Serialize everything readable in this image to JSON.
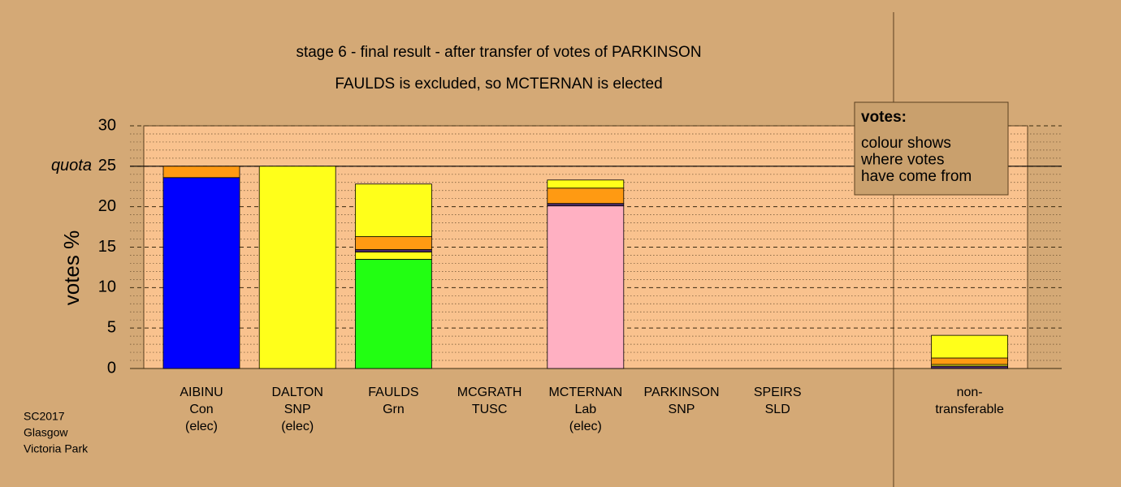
{
  "chart_data": {
    "type": "bar",
    "title": "stage 6 - final result - after transfer of votes of PARKINSON",
    "subtitle": "FAULDS is excluded, so MCTERNAN is elected",
    "ylabel": "votes %",
    "ylim": [
      0,
      30
    ],
    "yticks": [
      0,
      5,
      10,
      15,
      20,
      25,
      30
    ],
    "yminorticks": [
      1,
      2,
      3,
      4,
      6,
      7,
      8,
      9,
      11,
      12,
      13,
      14,
      16,
      17,
      18,
      19,
      21,
      22,
      23,
      24,
      26,
      27,
      28,
      29
    ],
    "quota": {
      "value": 25,
      "label": "quota"
    },
    "categories": [
      [
        "AIBINU",
        "Con",
        "(elec)"
      ],
      [
        "DALTON",
        "SNP",
        "(elec)"
      ],
      [
        "FAULDS",
        "Grn"
      ],
      [
        "MCGRATH",
        "TUSC"
      ],
      [
        "MCTERNAN",
        "Lab",
        "(elec)"
      ],
      [
        "PARKINSON",
        "SNP"
      ],
      [
        "SPEIRS",
        "SLD"
      ],
      null,
      [
        "non-",
        "transferable"
      ]
    ],
    "stacks": [
      [
        {
          "value": 23.6,
          "color": "#0000ff"
        },
        {
          "value": 1.4,
          "color": "#ff9a12"
        }
      ],
      [
        {
          "value": 25,
          "color": "#ffff1a"
        }
      ],
      [
        {
          "value": 13.5,
          "color": "#22ff12"
        },
        {
          "value": 0.9,
          "color": "#ffff1a"
        },
        {
          "value": 0.3,
          "color": "#4a2a66"
        },
        {
          "value": 1.6,
          "color": "#ff9a12"
        },
        {
          "value": 6.5,
          "color": "#ffff1a"
        }
      ],
      [],
      [
        {
          "value": 20.1,
          "color": "#ffb0c2"
        },
        {
          "value": 0.3,
          "color": "#4a2a66"
        },
        {
          "value": 1.9,
          "color": "#ff9a12"
        },
        {
          "value": 1.0,
          "color": "#ffff1a"
        }
      ],
      [],
      [],
      [],
      [
        {
          "value": 0.3,
          "color": "#4a2a66"
        },
        {
          "value": 0.2,
          "color": "#ffff1a"
        },
        {
          "value": 0.8,
          "color": "#ff9a12"
        },
        {
          "value": 2.8,
          "color": "#ffff1a"
        }
      ]
    ],
    "annotation": {
      "title": "votes:",
      "lines": [
        "colour shows",
        "where votes",
        "have come from"
      ]
    },
    "footnote": [
      "SC2017",
      "Glasgow",
      "Victoria Park"
    ]
  }
}
